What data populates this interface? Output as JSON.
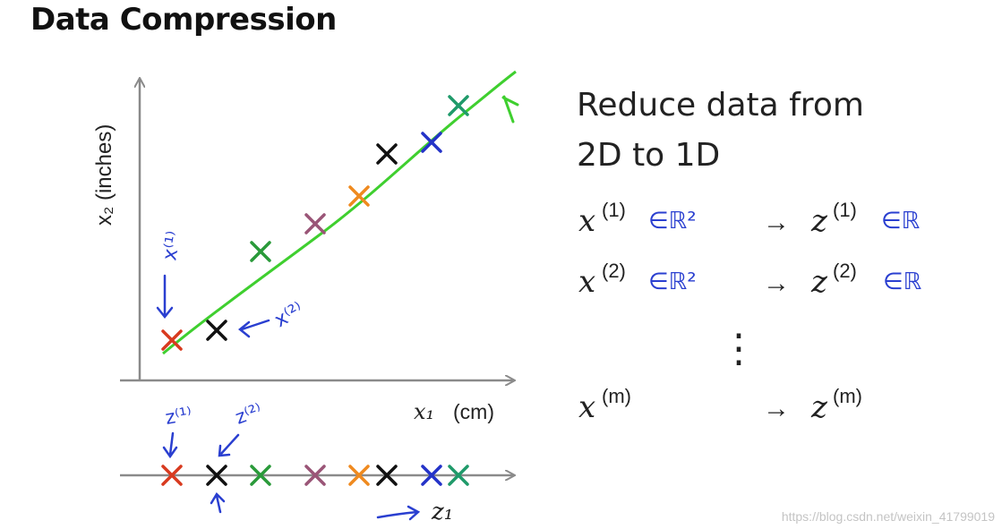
{
  "title": "Data Compression",
  "heading": {
    "line1": "Reduce data from",
    "line2": "2D to 1D"
  },
  "plot": {
    "y_axis_label": "x₂ (inches)",
    "x_axis_label_var": "x₁",
    "x_axis_label_unit": "(cm)",
    "z_axis_label": "z₁",
    "points": [
      {
        "color": "#d83a1f"
      },
      {
        "color": "#111111"
      },
      {
        "color": "#2a9a3a"
      },
      {
        "color": "#9a5577"
      },
      {
        "color": "#ef8a1f"
      },
      {
        "color": "#111111"
      },
      {
        "color": "#2433c8"
      },
      {
        "color": "#1f9a6a"
      }
    ],
    "line_color": "#3fcf2f",
    "annotations": {
      "x1": "x⁽¹⁾",
      "x2": "x⁽²⁾",
      "z1": "z⁽¹⁾",
      "z2": "z⁽²⁾"
    }
  },
  "mapping": {
    "rows": [
      {
        "x": "x",
        "x_sup": "(1)",
        "space": "∈ℝ²",
        "arrow": "→",
        "z": "z",
        "z_sup": "(1)",
        "z_space": "∈ℝ"
      },
      {
        "x": "x",
        "x_sup": "(2)",
        "space": "∈ℝ²",
        "arrow": "→",
        "z": "z",
        "z_sup": "(2)",
        "z_space": "∈ℝ"
      },
      {
        "x": "x",
        "x_sup": "(m)",
        "space": "",
        "arrow": "→",
        "z": "z",
        "z_sup": "(m)",
        "z_space": ""
      }
    ],
    "ellipsis": "⋮"
  },
  "colors": {
    "ink": "#222222",
    "annotation_blue": "#2a3fd0",
    "axis": "#8a8a8a"
  },
  "watermark": "https://blog.csdn.net/weixin_41799019"
}
